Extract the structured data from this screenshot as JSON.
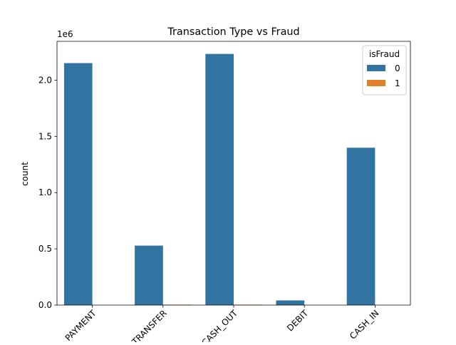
{
  "chart_data": {
    "type": "bar",
    "title": "Transaction Type vs Fraud",
    "xlabel": "",
    "ylabel": "count",
    "y_multiplier_label": "1e6",
    "categories": [
      "PAYMENT",
      "TRANSFER",
      "CASH_OUT",
      "DEBIT",
      "CASH_IN"
    ],
    "series": [
      {
        "name": "0",
        "color": "#3274a1",
        "values": [
          2151495,
          528812,
          2233384,
          41432,
          1399284
        ]
      },
      {
        "name": "1",
        "color": "#e1812c",
        "values": [
          0,
          4097,
          4116,
          0,
          0
        ]
      }
    ],
    "ylim": [
      0,
      2345053
    ],
    "yticks": [
      0,
      500000,
      1000000,
      1500000,
      2000000
    ],
    "ytick_labels": [
      "0.0",
      "0.5",
      "1.0",
      "1.5",
      "2.0"
    ],
    "xtick_rotation": 45,
    "legend": {
      "title": "isFraud",
      "position": "top-right"
    },
    "grid": false
  }
}
